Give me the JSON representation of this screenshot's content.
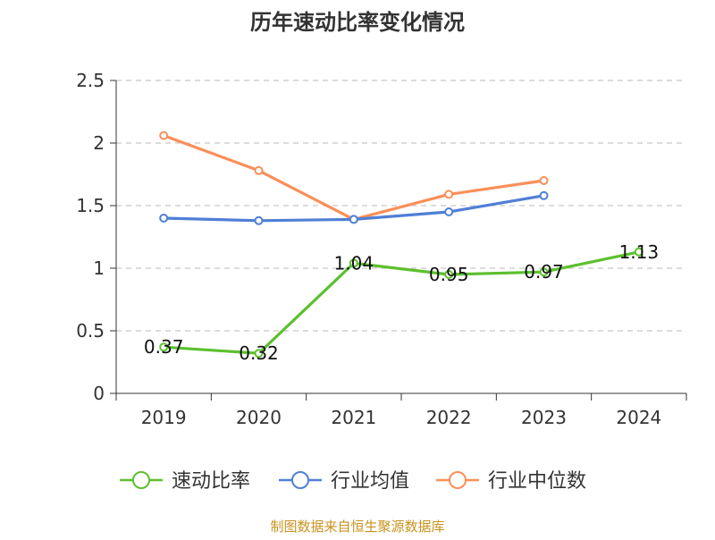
{
  "chart_data": {
    "type": "line",
    "title": "历年速动比率变化情况",
    "categories": [
      "2019",
      "2020",
      "2021",
      "2022",
      "2023",
      "2024"
    ],
    "ylim": [
      0,
      2.5
    ],
    "yticks": [
      "0",
      "0.5",
      "1",
      "1.5",
      "2",
      "2.5"
    ],
    "grid": true,
    "legend_position": "bottom",
    "series": [
      {
        "name": "速动比率",
        "color": "#5cc02e",
        "values": [
          0.37,
          0.32,
          1.04,
          0.95,
          0.97,
          1.13
        ],
        "labels": [
          "0.37",
          "0.32",
          "1.04",
          "0.95",
          "0.97",
          "1.13"
        ],
        "marker_fill": "#ffffff"
      },
      {
        "name": "行业均值",
        "color": "#4f7fd6",
        "values": [
          1.4,
          1.38,
          1.39,
          1.45,
          1.58,
          null
        ],
        "marker_fill": "#ffffff"
      },
      {
        "name": "行业中位数",
        "color": "#fa8f58",
        "values": [
          2.06,
          1.78,
          1.39,
          1.59,
          1.7,
          null
        ],
        "marker_fill": "#ffffff"
      }
    ],
    "source": "制图数据来自恒生聚源数据库"
  }
}
